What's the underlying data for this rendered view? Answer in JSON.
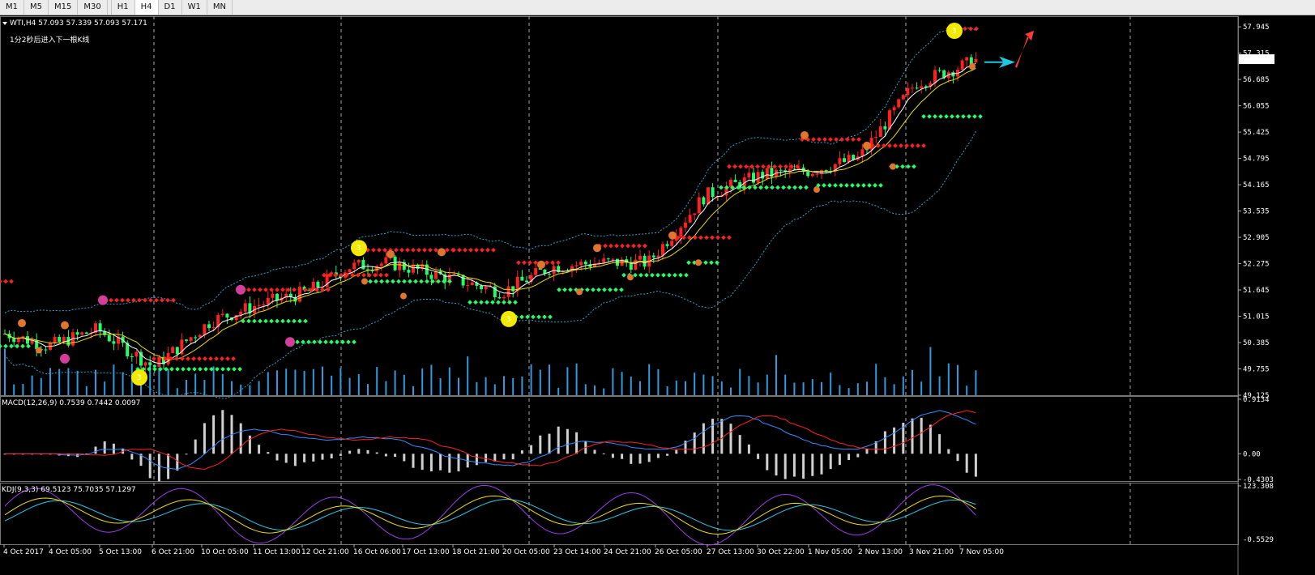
{
  "toolbar": {
    "timeframes": [
      "M1",
      "M5",
      "M15",
      "M30",
      "H1",
      "H4",
      "D1",
      "W1",
      "MN"
    ],
    "active": "H4"
  },
  "main_panel": {
    "info": "WTI,H4  57.093 57.339 57.093 57.171",
    "countdown": "1分2秒后进入下一根K线",
    "price_axis": [
      "57.945",
      "57.315",
      "56.685",
      "56.055",
      "55.425",
      "54.795",
      "54.165",
      "53.535",
      "52.905",
      "52.275",
      "51.645",
      "51.015",
      "50.385",
      "49.755",
      "49.125"
    ],
    "current_price": "57.171",
    "up_color": "#ff2020",
    "down_color": "#22ff66",
    "volume_color": "#2e9bdf"
  },
  "macd_panel": {
    "info": "MACD(12,26,9) 0.7539 0.7442 0.0097",
    "axis": [
      "0.9134",
      "0.00",
      "-0.4303"
    ]
  },
  "kdj_panel": {
    "info": "KDJ(9,3,3) 69.5123 75.7035 57.1297",
    "axis_top": "123.308",
    "axis_bottom": "-0.5529"
  },
  "time_axis": [
    "4 Oct 2017",
    "4 Oct 05:00",
    "5 Oct 13:00",
    "6 Oct 21:00",
    "10 Oct 05:00",
    "11 Oct 13:00",
    "12 Oct 21:00",
    "16 Oct 06:00",
    "17 Oct 13:00",
    "18 Oct 21:00",
    "20 Oct 05:00",
    "23 Oct 14:00",
    "24 Oct 21:00",
    "26 Oct 05:00",
    "27 Oct 13:00",
    "30 Oct 22:00",
    "1 Nov 05:00",
    "2 Nov 13:00",
    "3 Nov 21:00",
    "7 Nov 05:00"
  ],
  "chart_data": {
    "type": "candlestick",
    "symbol": "WTI",
    "timeframe": "H4",
    "x": [
      "4 Oct 2017",
      "4 Oct 05:00",
      "5 Oct 13:00",
      "6 Oct 21:00",
      "10 Oct 05:00",
      "11 Oct 13:00",
      "12 Oct 21:00",
      "16 Oct 06:00",
      "17 Oct 13:00",
      "18 Oct 21:00",
      "20 Oct 05:00",
      "23 Oct 14:00",
      "24 Oct 21:00",
      "26 Oct 05:00",
      "27 Oct 13:00",
      "30 Oct 22:00",
      "1 Nov 05:00",
      "2 Nov 13:00",
      "3 Nov 21:00",
      "7 Nov 05:00"
    ],
    "close": [
      50.6,
      50.3,
      50.7,
      49.8,
      50.9,
      51.3,
      51.6,
      52.2,
      52.3,
      51.9,
      51.6,
      52.2,
      52.3,
      52.3,
      53.9,
      54.4,
      54.5,
      54.8,
      56.6,
      57.17
    ],
    "last_bar": {
      "open": 57.093,
      "high": 57.339,
      "low": 57.093,
      "close": 57.171
    },
    "ylim": [
      49.125,
      58.2
    ],
    "macd": {
      "params": "12,26,9",
      "values": [
        0.7539,
        0.7442,
        0.0097
      ],
      "ylim": [
        -0.4303,
        0.9134
      ]
    },
    "kdj": {
      "params": "9,3,3",
      "values": [
        69.5123,
        75.7035,
        57.1297
      ],
      "ylim": [
        -0.5529,
        123.308
      ]
    }
  }
}
